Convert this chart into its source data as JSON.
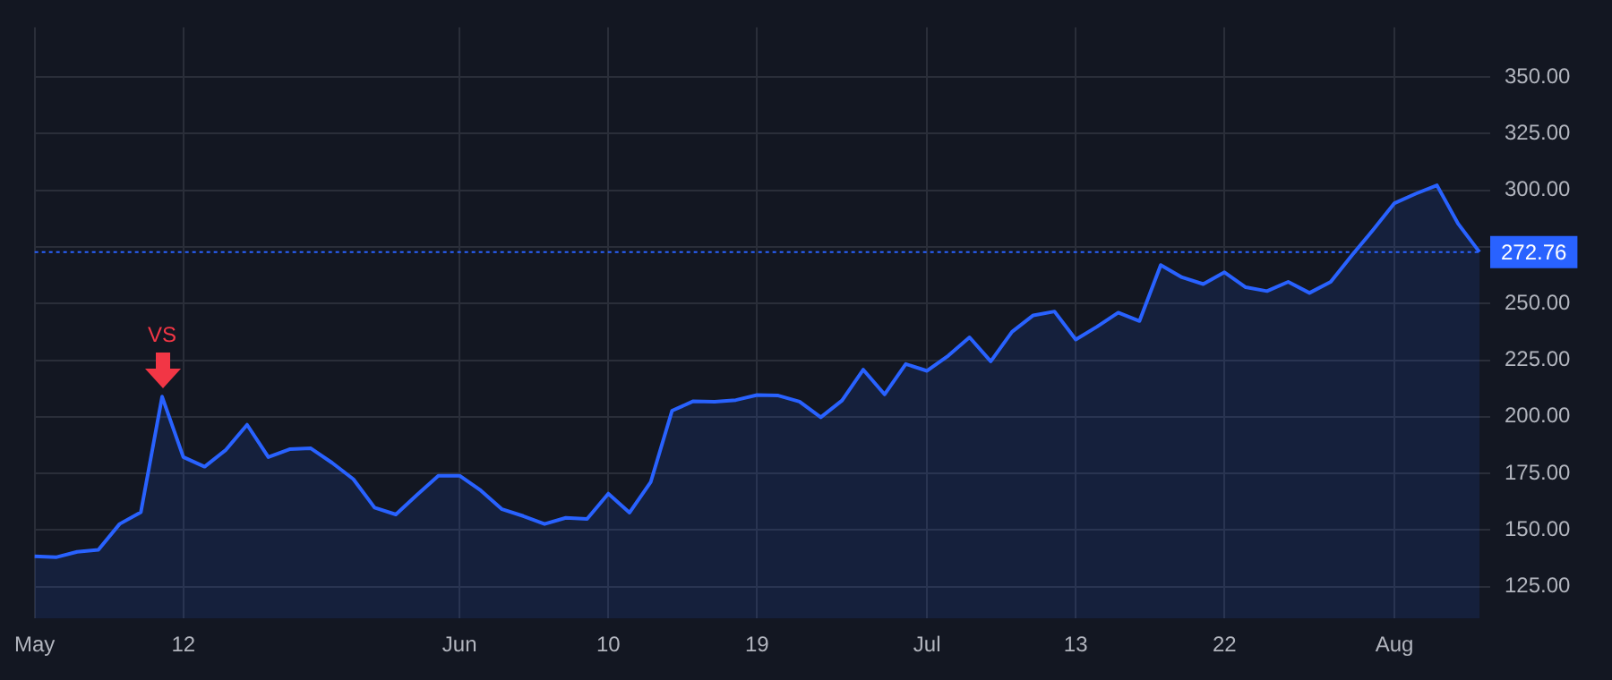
{
  "chart_data": {
    "type": "area",
    "categories": [
      "May",
      null,
      null,
      null,
      null,
      null,
      null,
      "12",
      null,
      null,
      null,
      null,
      null,
      null,
      null,
      null,
      null,
      null,
      null,
      null,
      "Jun",
      null,
      null,
      null,
      null,
      null,
      null,
      "10",
      null,
      null,
      null,
      null,
      null,
      null,
      "19",
      null,
      null,
      null,
      null,
      null,
      null,
      null,
      "Jul",
      null,
      null,
      null,
      null,
      null,
      null,
      "13",
      null,
      null,
      null,
      null,
      null,
      null,
      "22",
      null,
      null,
      null,
      null,
      null,
      null,
      null,
      "Aug",
      null,
      null,
      null,
      null
    ],
    "series": [
      {
        "color": "#2962ff",
        "values": [
          138.4,
          138,
          140.4,
          141.3,
          152.7,
          157.9,
          208.9,
          182.2,
          178,
          185.4,
          196.5,
          182.2,
          185.7,
          186.1,
          179.7,
          172.5,
          159.9,
          156.9,
          165.6,
          174,
          174,
          167.5,
          159.2,
          156.2,
          152.7,
          155.4,
          154.9,
          166.1,
          157.7,
          171.3,
          202.7,
          206.9,
          206.7,
          207.4,
          209.6,
          209.4,
          206.7,
          199.8,
          207.2,
          220.8,
          209.9,
          223.3,
          220.3,
          227,
          235.1,
          224.5,
          237.5,
          244.8,
          246.5,
          234.1,
          239.8,
          246,
          242.3,
          267,
          261.6,
          258.6,
          263.8,
          257.2,
          255.5,
          259.6,
          254.7,
          259.6,
          271.3,
          282.6,
          294.3,
          298.5,
          302.2,
          285.2,
          272.76
        ]
      }
    ],
    "ylim": [
      111,
      372
    ],
    "yticks": [
      {
        "value": 125,
        "label": "125.00"
      },
      {
        "value": 150,
        "label": "150.00"
      },
      {
        "value": 175,
        "label": "175.00"
      },
      {
        "value": 200,
        "label": "200.00"
      },
      {
        "value": 225,
        "label": "225.00"
      },
      {
        "value": 250,
        "label": "250.00"
      },
      {
        "value": 275,
        "label": null
      },
      {
        "value": 300,
        "label": "300.00"
      },
      {
        "value": 325,
        "label": "325.00"
      },
      {
        "value": 350,
        "label": "350.00"
      }
    ],
    "grid": true,
    "legend": false,
    "ref_lines": [
      {
        "axis": "y",
        "value": 272.76,
        "label": "272.76",
        "color": "#2962ff",
        "line_style": "dotted"
      }
    ],
    "annotations": [
      {
        "text": "VS",
        "y": 208.9
      }
    ]
  }
}
